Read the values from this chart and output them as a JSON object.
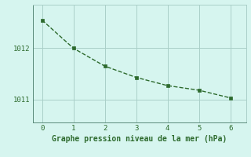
{
  "x": [
    0,
    1,
    2,
    3,
    4,
    5,
    6
  ],
  "y": [
    1012.55,
    1012.0,
    1011.65,
    1011.43,
    1011.27,
    1011.18,
    1011.03
  ],
  "line_color": "#2d6a2d",
  "marker": "s",
  "marker_size": 2.5,
  "line_width": 1.0,
  "line_style": "--",
  "background_color": "#d6f5ef",
  "grid_color": "#aacfc8",
  "xlabel": "Graphe pression niveau de la mer (hPa)",
  "xlabel_fontsize": 7,
  "xlabel_color": "#2d6a2d",
  "tick_color": "#2d6a2d",
  "tick_fontsize": 6.5,
  "xlim": [
    -0.3,
    6.5
  ],
  "ylim": [
    1010.55,
    1012.85
  ],
  "yticks": [
    1011,
    1012
  ],
  "xticks": [
    0,
    1,
    2,
    3,
    4,
    5,
    6
  ]
}
